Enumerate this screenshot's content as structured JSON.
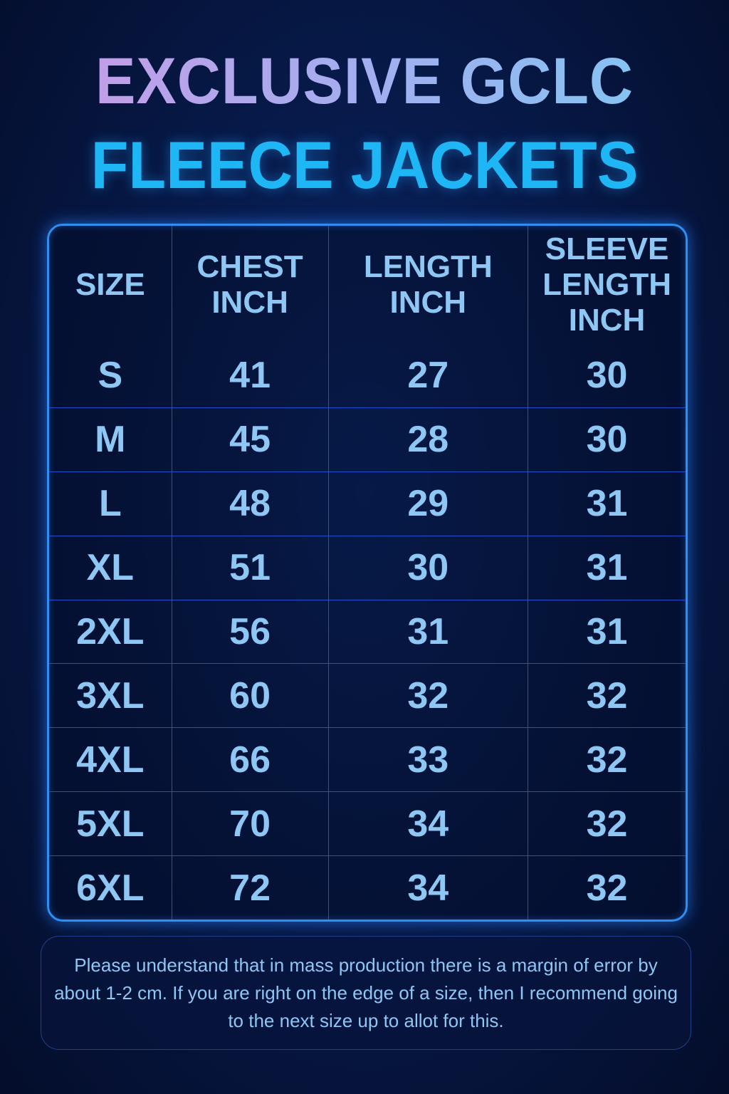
{
  "title": {
    "line1": "EXCLUSIVE GCLC",
    "line2": "FLEECE JACKETS"
  },
  "colors": {
    "title_line2": "#1eb6f4",
    "table_border": "#2f8ef0",
    "text": "#8ec6f4",
    "background": "#071a4a"
  },
  "table": {
    "headers": [
      "SIZE",
      "CHEST INCH",
      "LENGTH INCH",
      "SLEEVE LENGTH INCH"
    ],
    "rows": [
      [
        "S",
        "41",
        "27",
        "30"
      ],
      [
        "M",
        "45",
        "28",
        "30"
      ],
      [
        "L",
        "48",
        "29",
        "31"
      ],
      [
        "XL",
        "51",
        "30",
        "31"
      ],
      [
        "2XL",
        "56",
        "31",
        "31"
      ],
      [
        "3XL",
        "60",
        "32",
        "32"
      ],
      [
        "4XL",
        "66",
        "33",
        "32"
      ],
      [
        "5XL",
        "70",
        "34",
        "32"
      ],
      [
        "6XL",
        "72",
        "34",
        "32"
      ]
    ]
  },
  "note": "Please understand that in mass production there is a margin of error by about 1-2 cm. If you are right on the edge of a size, then I recommend going to the next size up to allot for this."
}
